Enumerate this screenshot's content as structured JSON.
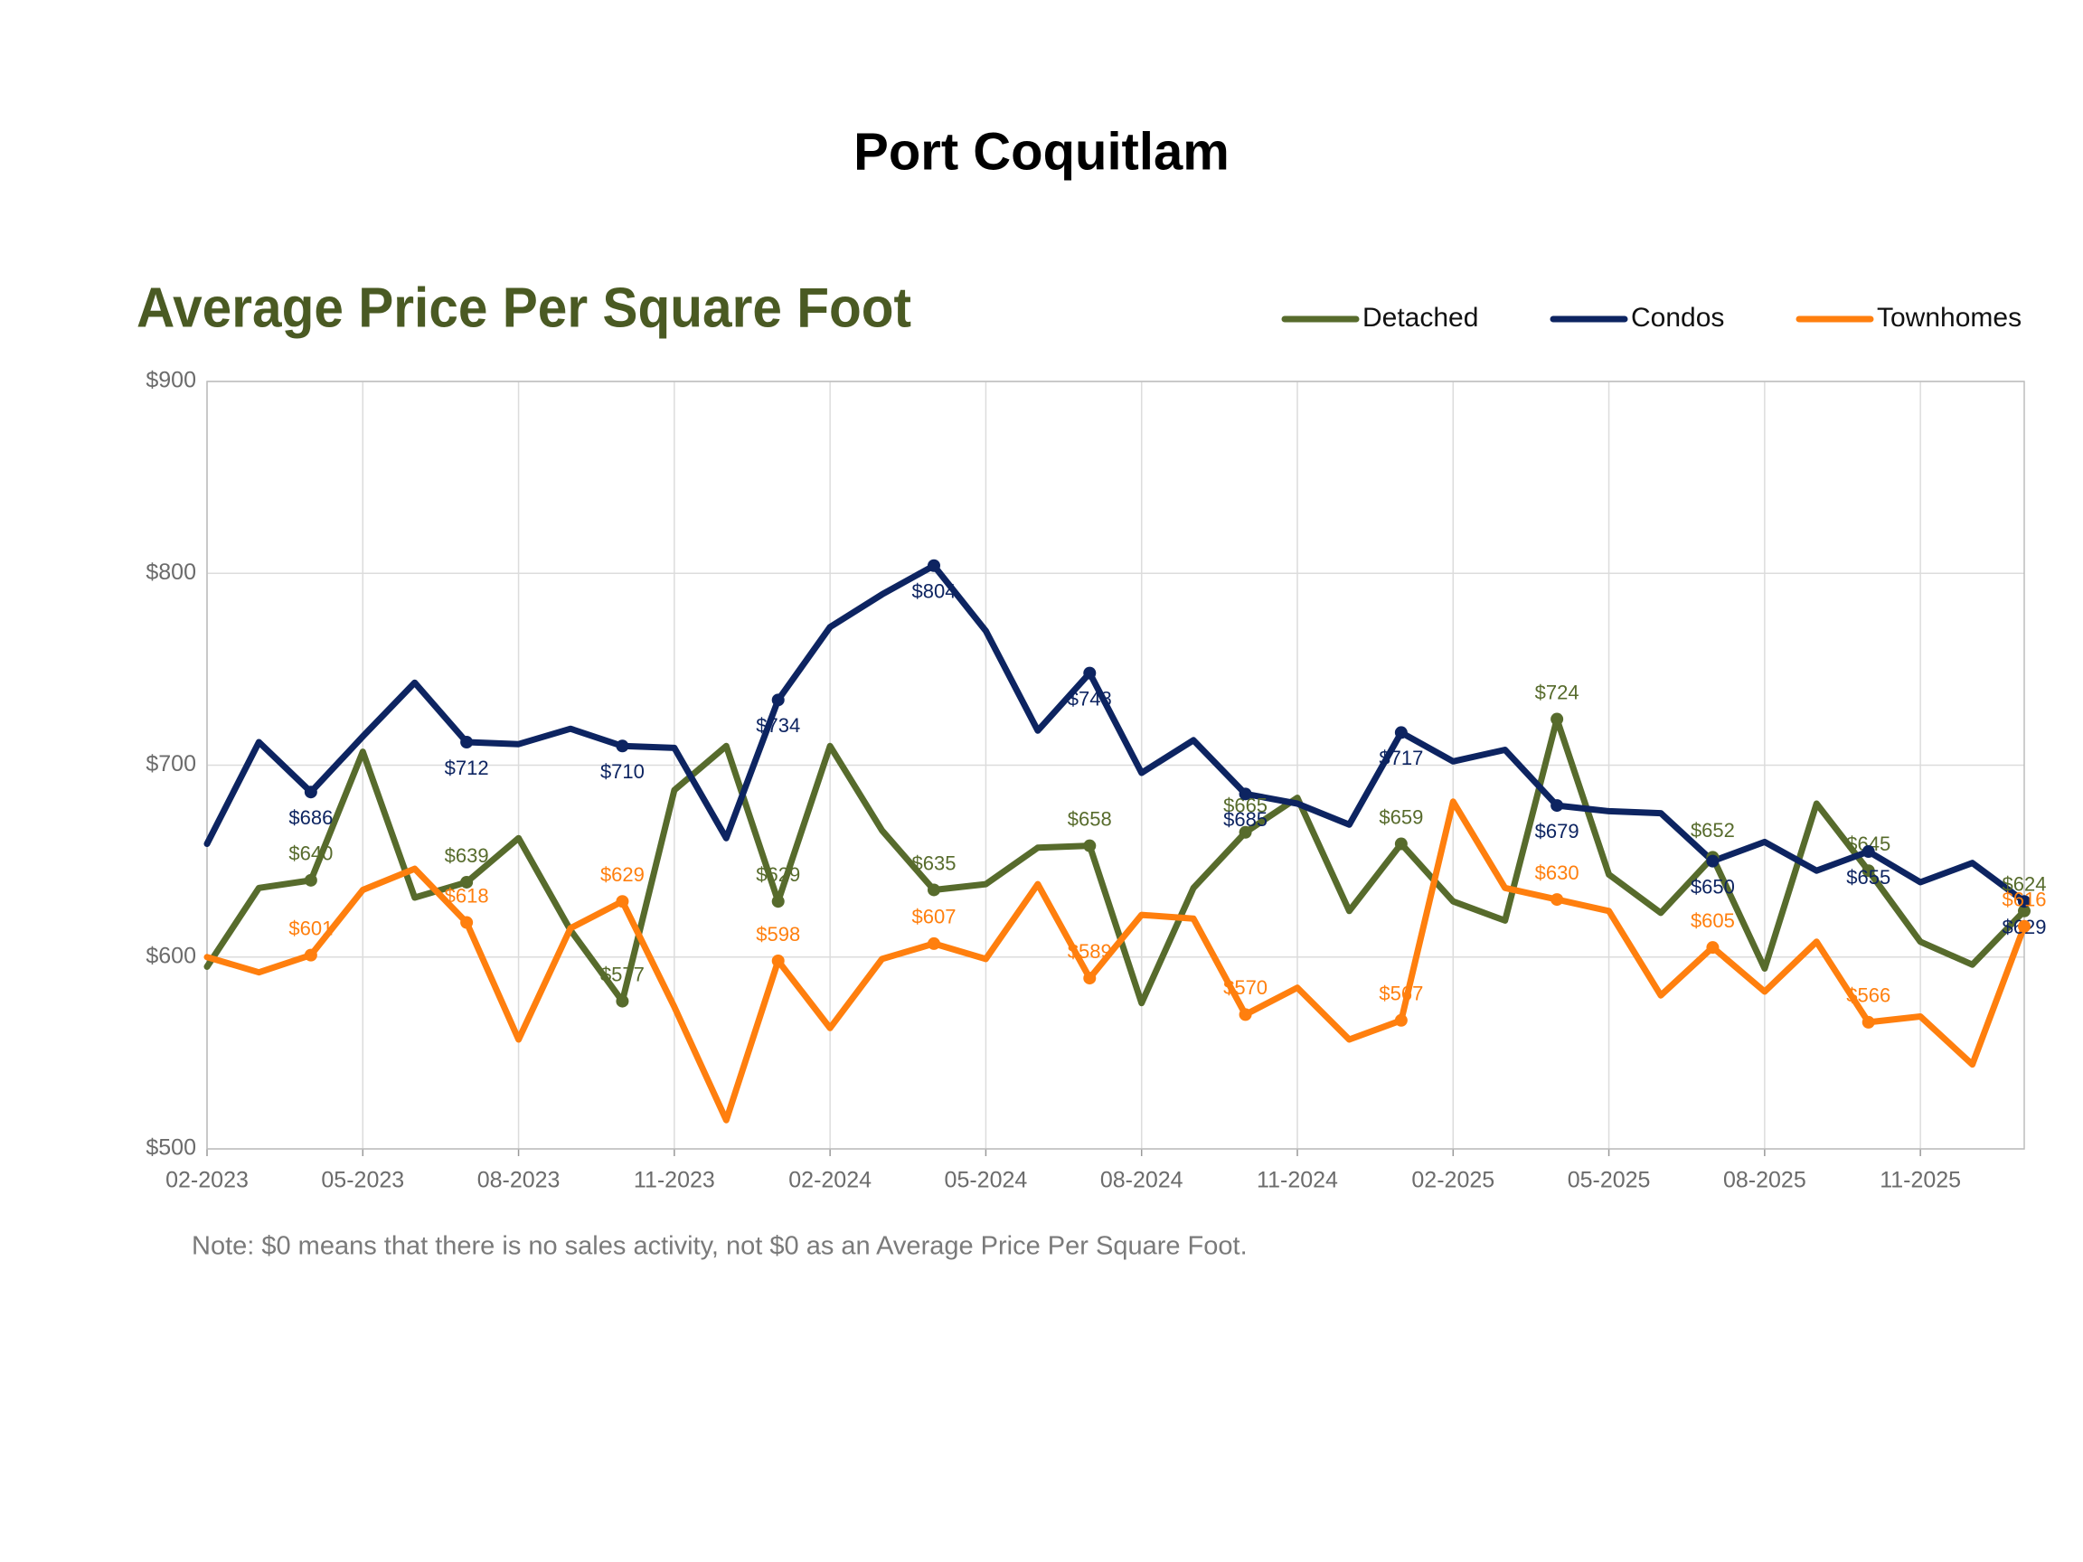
{
  "chart_data": {
    "type": "line",
    "title": "Port Coquitlam",
    "subtitle": "Average Price Per Square Foot",
    "note": "Note: $0 means that there is no sales activity, not $0 as an Average Price Per Square Foot.",
    "categories": [
      "02-2023",
      null,
      null,
      "05-2023",
      null,
      null,
      "08-2023",
      null,
      null,
      "11-2023",
      null,
      null,
      "02-2024",
      null,
      null,
      "05-2024",
      null,
      null,
      "08-2024",
      null,
      null,
      "11-2024",
      null,
      null,
      "02-2025",
      null,
      null,
      "05-2025",
      null,
      null,
      "08-2025",
      null,
      null,
      "11-2025",
      null,
      null
    ],
    "ylim": [
      500,
      900
    ],
    "yticks": [
      {
        "value": 500,
        "label": "$500"
      },
      {
        "value": 600,
        "label": "$600"
      },
      {
        "value": 700,
        "label": "$700"
      },
      {
        "value": 800,
        "label": "$800"
      },
      {
        "value": 900,
        "label": "$900"
      }
    ],
    "grid": true,
    "legend": "top-right",
    "series": [
      {
        "name": "Detached",
        "color": "#576b2c",
        "values": [
          595,
          636,
          640,
          707,
          631,
          639,
          662,
          614,
          577,
          687,
          710,
          629,
          710,
          666,
          635,
          638,
          657,
          658,
          576,
          636,
          665,
          683,
          624,
          659,
          629,
          619,
          724,
          643,
          623,
          652,
          594,
          680,
          645,
          608,
          596,
          624
        ],
        "value_labels": [
          null,
          null,
          "$640",
          null,
          null,
          "$639",
          null,
          null,
          "$577",
          null,
          null,
          "$629",
          null,
          null,
          "$635",
          null,
          null,
          "$658",
          null,
          null,
          "$665",
          null,
          null,
          "$659",
          null,
          null,
          "$724",
          null,
          null,
          "$652",
          null,
          null,
          "$645",
          null,
          null,
          "$624"
        ]
      },
      {
        "name": "Condos",
        "color": "#0d2461",
        "values": [
          659,
          712,
          686,
          715,
          743,
          712,
          711,
          719,
          710,
          709,
          662,
          734,
          772,
          789,
          804,
          770,
          718,
          748,
          696,
          713,
          685,
          680,
          669,
          717,
          702,
          708,
          679,
          676,
          675,
          650,
          660,
          645,
          655,
          639,
          649,
          629
        ],
        "value_labels": [
          null,
          null,
          "$686",
          null,
          null,
          "$712",
          null,
          null,
          "$710",
          null,
          null,
          "$734",
          null,
          null,
          "$804",
          null,
          null,
          "$748",
          null,
          null,
          "$685",
          null,
          null,
          "$717",
          null,
          null,
          "$679",
          null,
          null,
          "$650",
          null,
          null,
          "$655",
          null,
          null,
          "$629"
        ]
      },
      {
        "name": "Townhomes",
        "color": "#ff7f0e",
        "values": [
          600,
          592,
          601,
          635,
          646,
          618,
          557,
          615,
          629,
          574,
          515,
          598,
          563,
          599,
          607,
          599,
          638,
          589,
          622,
          620,
          570,
          584,
          557,
          567,
          681,
          636,
          630,
          624,
          580,
          605,
          582,
          608,
          566,
          569,
          544,
          616
        ],
        "value_labels": [
          null,
          null,
          "$601",
          null,
          null,
          "$618",
          null,
          null,
          "$629",
          null,
          null,
          "$598",
          null,
          null,
          "$607",
          null,
          null,
          "$589",
          null,
          null,
          "$570",
          null,
          null,
          "$567",
          null,
          null,
          "$630",
          null,
          null,
          "$605",
          null,
          null,
          "$566",
          null,
          null,
          "$616"
        ]
      }
    ]
  }
}
